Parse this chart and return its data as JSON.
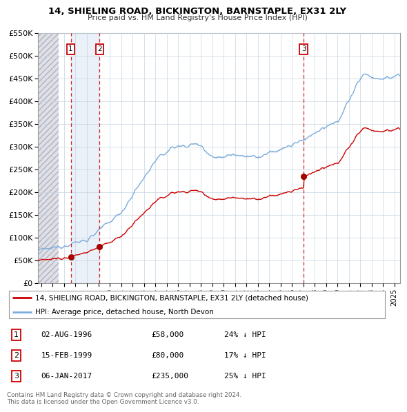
{
  "title": "14, SHIELING ROAD, BICKINGTON, BARNSTAPLE, EX31 2LY",
  "subtitle": "Price paid vs. HM Land Registry's House Price Index (HPI)",
  "ylim": [
    0,
    550000
  ],
  "yticks": [
    0,
    50000,
    100000,
    150000,
    200000,
    250000,
    300000,
    350000,
    400000,
    450000,
    500000,
    550000
  ],
  "xlim_start": 1993.7,
  "xlim_end": 2025.5,
  "transactions": [
    {
      "num": 1,
      "date": "02-AUG-1996",
      "price": 58000,
      "pct": "24%",
      "x": 1996.58
    },
    {
      "num": 2,
      "date": "15-FEB-1999",
      "price": 80000,
      "pct": "17%",
      "x": 1999.12
    },
    {
      "num": 3,
      "date": "06-JAN-2017",
      "price": 235000,
      "pct": "25%",
      "x": 2017.03
    }
  ],
  "legend_line1": "14, SHIELING ROAD, BICKINGTON, BARNSTAPLE, EX31 2LY (detached house)",
  "legend_line2": "HPI: Average price, detached house, North Devon",
  "copyright": "Contains HM Land Registry data © Crown copyright and database right 2024.\nThis data is licensed under the Open Government Licence v3.0.",
  "grid_color": "#c8d4e0",
  "red_line_color": "#cc0000",
  "blue_line_color": "#7aacdb",
  "hatch_left_end": 1995.5,
  "shade_between_1_2_color": "#dce8f5",
  "transaction_box_color": "#cc0000"
}
